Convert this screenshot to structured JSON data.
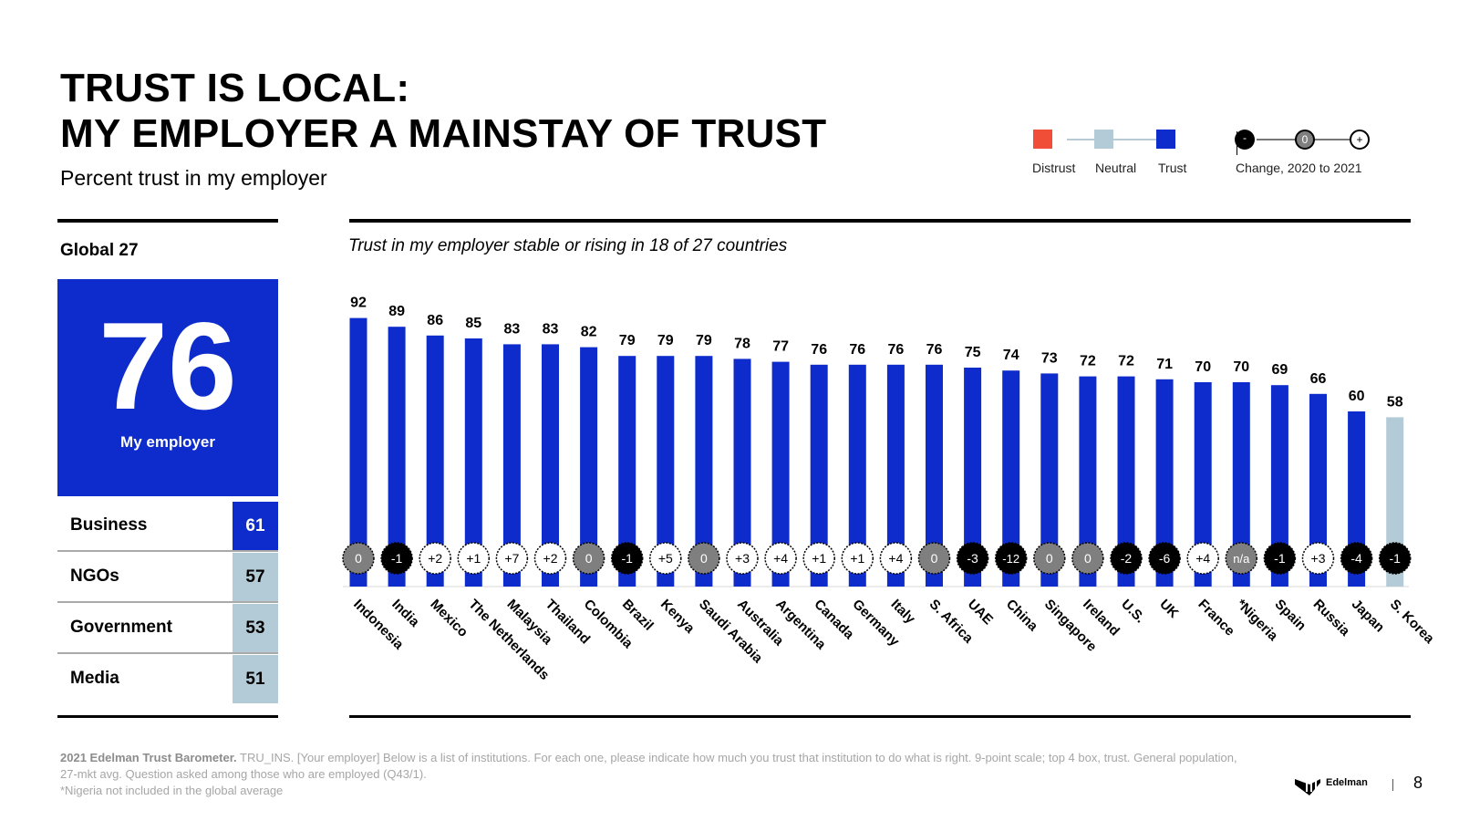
{
  "header": {
    "title_line1": "TRUST IS LOCAL:",
    "title_line2": "MY EMPLOYER A MAINSTAY OF TRUST",
    "subtitle": "Percent trust in my employer"
  },
  "legend": {
    "distrust": {
      "label": "Distrust",
      "color": "#f04e37"
    },
    "neutral": {
      "label": "Neutral",
      "color": "#b3cbd6"
    },
    "trust": {
      "label": "Trust",
      "color": "#0d2ccb"
    },
    "change_label": "Change, 2020 to 2021",
    "change_symbols": [
      "-",
      "0",
      "+"
    ]
  },
  "global": {
    "label": "Global 27",
    "value": "76",
    "value_label": "My employer",
    "institutions": [
      {
        "name": "Business",
        "value": "61",
        "level": "trust"
      },
      {
        "name": "NGOs",
        "value": "57",
        "level": "neutral"
      },
      {
        "name": "Government",
        "value": "53",
        "level": "neutral"
      },
      {
        "name": "Media",
        "value": "51",
        "level": "neutral"
      }
    ]
  },
  "chart_subtitle": "Trust in my employer stable or rising in 18 of 27 countries",
  "chart_data": {
    "type": "bar",
    "title": "Trust in my employer stable or rising in 18 of 27 countries",
    "ylabel": "Percent trust in my employer",
    "ylim": [
      0,
      100
    ],
    "categories": [
      "Indonesia",
      "India",
      "Mexico",
      "The Netherlands",
      "Malaysia",
      "Thailand",
      "Colombia",
      "Brazil",
      "Kenya",
      "Saudi Arabia",
      "Australia",
      "Argentina",
      "Canada",
      "Germany",
      "Italy",
      "S. Africa",
      "UAE",
      "China",
      "Singapore",
      "Ireland",
      "U.S.",
      "UK",
      "France",
      "*Nigeria",
      "Spain",
      "Russia",
      "Japan",
      "S. Korea"
    ],
    "values": [
      92,
      89,
      86,
      85,
      83,
      83,
      82,
      79,
      79,
      79,
      78,
      77,
      76,
      76,
      76,
      76,
      75,
      74,
      73,
      72,
      72,
      71,
      70,
      70,
      69,
      66,
      60,
      58
    ],
    "levels": [
      "trust",
      "trust",
      "trust",
      "trust",
      "trust",
      "trust",
      "trust",
      "trust",
      "trust",
      "trust",
      "trust",
      "trust",
      "trust",
      "trust",
      "trust",
      "trust",
      "trust",
      "trust",
      "trust",
      "trust",
      "trust",
      "trust",
      "trust",
      "trust",
      "trust",
      "trust",
      "trust",
      "neutral"
    ],
    "changes": [
      "0",
      "-1",
      "+2",
      "+1",
      "+7",
      "+2",
      "0",
      "-1",
      "+5",
      "0",
      "+3",
      "+4",
      "+1",
      "+1",
      "+4",
      "0",
      "-3",
      "-12",
      "0",
      "0",
      "-2",
      "-6",
      "+4",
      "n/a",
      "-1",
      "+3",
      "-4",
      "-1"
    ]
  },
  "footer": {
    "source_bold": "2021 Edelman Trust Barometer.",
    "source_text": " TRU_INS. [Your employer] Below is a list of institutions. For each one, please indicate how much you trust that institution to do what is right. 9-point scale; top 4 box, trust. General population, 27-mkt avg. Question asked among those who are employed (Q43/1).",
    "note": "*Nigeria not included in the global average",
    "logo_text": "Edelman",
    "page_number": "8"
  }
}
